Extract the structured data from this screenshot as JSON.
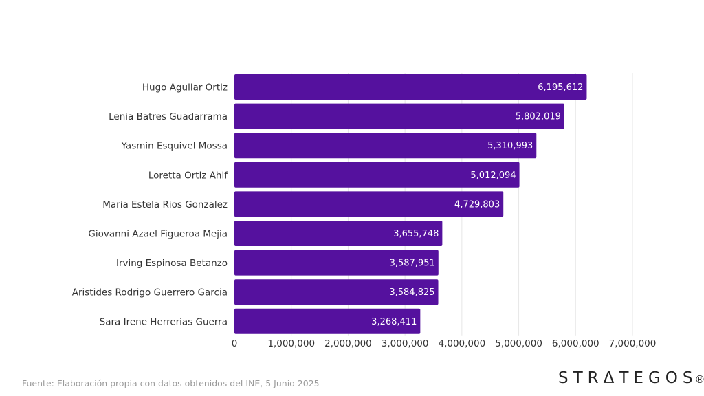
{
  "chart_data": {
    "type": "bar",
    "orientation": "horizontal",
    "title": "",
    "xlabel": "",
    "ylabel": "",
    "categories": [
      "Hugo Aguilar Ortiz",
      "Lenia Batres Guadarrama",
      "Yasmin Esquivel Mossa",
      "Loretta Ortiz Ahlf",
      "Maria Estela Rios Gonzalez",
      "Giovanni Azael Figueroa Mejia",
      "Irving Espinosa Betanzo",
      "Aristides Rodrigo Guerrero Garcia",
      "Sara Irene Herrerias Guerra"
    ],
    "values": [
      6195612,
      5802019,
      5310993,
      5012094,
      4729803,
      3655748,
      3587951,
      3584825,
      3268411
    ],
    "value_labels": [
      "6,195,612",
      "5,802,019",
      "5,310,993",
      "5,012,094",
      "4,729,803",
      "3,655,748",
      "3,587,951",
      "3,584,825",
      "3,268,411"
    ],
    "xlim": [
      0,
      7000000
    ],
    "x_ticks": [
      0,
      1000000,
      2000000,
      3000000,
      4000000,
      5000000,
      6000000,
      7000000
    ],
    "x_tick_labels": [
      "0",
      "1,000,000",
      "2,000,000",
      "3,000,000",
      "4,000,000",
      "5,000,000",
      "6,000,000",
      "7,000,000"
    ],
    "grid": true,
    "legend": "none",
    "bar_color": "#55119e",
    "grid_color": "#e6e6e6"
  },
  "footer": {
    "source": "Fuente: Elaboración propia con datos obtenidos del INE, 5 Junio 2025",
    "logo_text": "STRΔTEGOS",
    "logo_mark": "®"
  }
}
